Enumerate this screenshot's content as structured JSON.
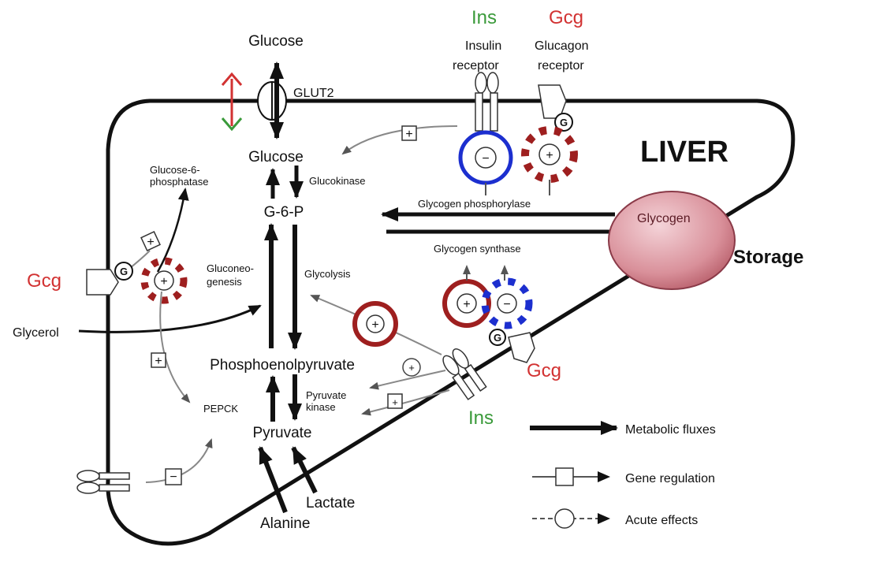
{
  "diagram": {
    "labels": {
      "glucose_outside": "Glucose",
      "glut2": "GLUT2",
      "glucose_inside": "Glucose",
      "g6p": "G-6-P",
      "glucose6phosphatase_line1": "Glucose-6-",
      "glucose6phosphatase_line2": "phosphatase",
      "glucokinase": "Glucokinase",
      "gluconeogenesis_line1": "Gluconeo-",
      "gluconeogenesis_line2": "genesis",
      "glycolysis": "Glycolysis",
      "glycerol": "Glycerol",
      "pep": "Phosphoenolpyruvate",
      "pepck": "PEPCK",
      "pyruvate_kinase_line1": "Pyruvate",
      "pyruvate_kinase_line2": "kinase",
      "pyruvate": "Pyruvate",
      "lactate": "Lactate",
      "alanine": "Alanine",
      "glycogen_phosphorylase": "Glycogen phosphorylase",
      "glycogen_synthase": "Glycogen synthase",
      "glycogen": "Glycogen",
      "storage": "Storage",
      "liver": "LIVER",
      "ins_top": "Ins",
      "gcg_top": "Gcg",
      "insulin_receptor_line1": "Insulin",
      "insulin_receptor_line2": "receptor",
      "glucagon_receptor_line1": "Glucagon",
      "glucagon_receptor_line2": "receptor",
      "gcg_left": "Gcg",
      "gcg_bottom": "Gcg",
      "ins_bottom": "Ins",
      "receptor_g": "G",
      "plus": "+",
      "minus": "−"
    },
    "legend": {
      "metabolic_fluxes": "Metabolic fluxes",
      "gene_regulation": "Gene regulation",
      "acute_effects": "Acute effects"
    },
    "colors": {
      "insulin": "#3a9a3a",
      "glucagon": "#d23232",
      "inhibition_ring": "#1c2fcf",
      "activation_ring": "#9e1f1f",
      "glycogen_fill": "#d9909a",
      "cell_outline": "#111111"
    }
  }
}
